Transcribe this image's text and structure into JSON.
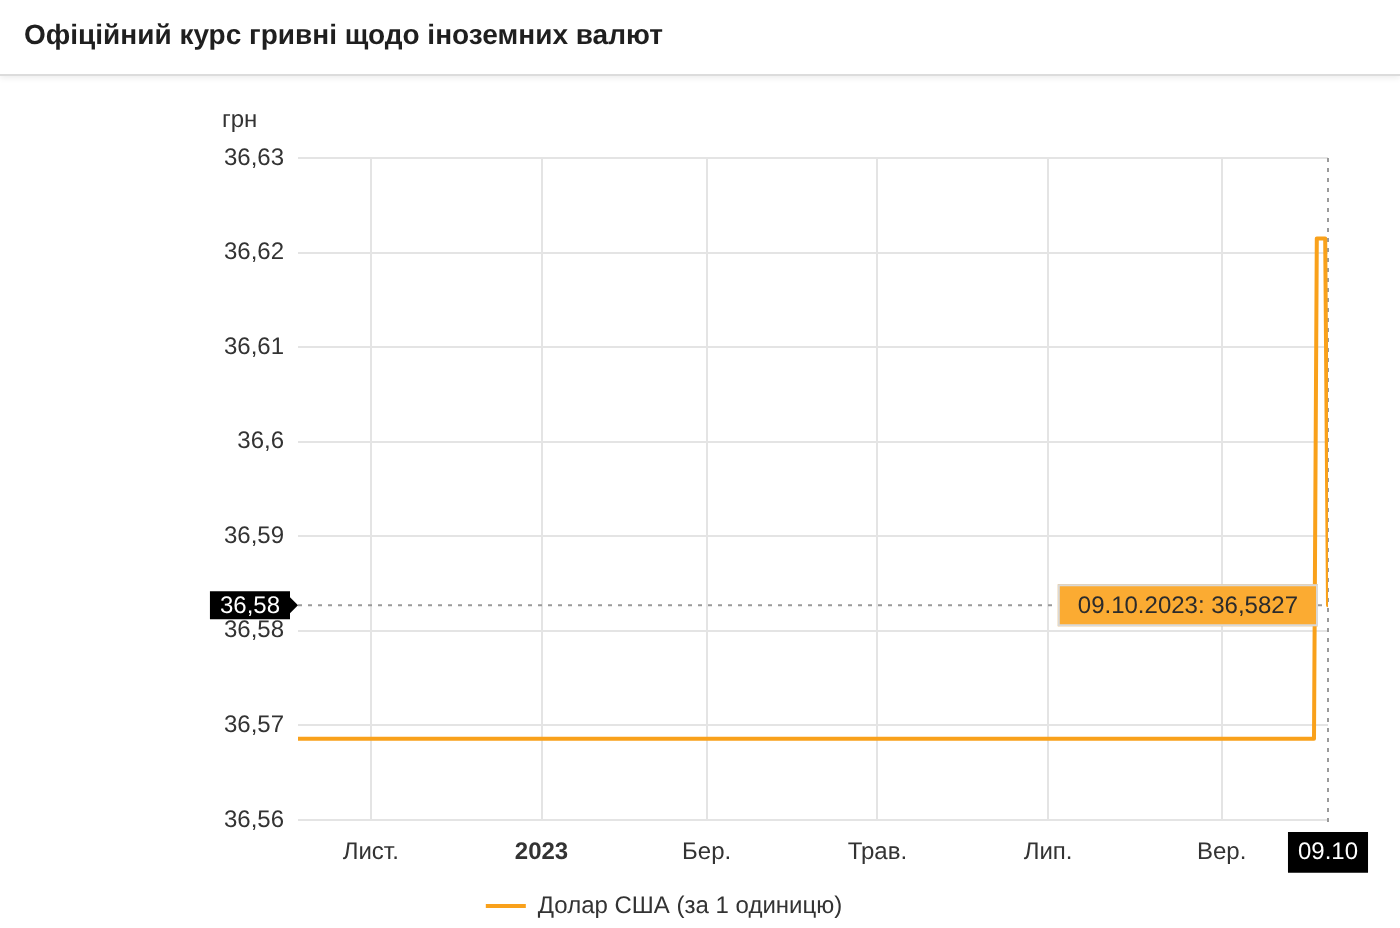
{
  "chart_data": {
    "type": "line",
    "title": "Офіційний курс гривні щодо іноземних валют",
    "ylabel": "грн",
    "x": [
      "2022-10-06",
      "2023-10-04",
      "2023-10-05",
      "2023-10-08",
      "2023-10-09"
    ],
    "series": [
      {
        "name": "Долар США (за 1 одиницю)",
        "color": "#f9a11b",
        "values": [
          36.5686,
          36.5686,
          36.6215,
          36.6215,
          36.5827
        ]
      }
    ],
    "xlim": [
      "2022-10-06",
      "2023-10-09"
    ],
    "xticks": [
      {
        "value": "2022-11-01",
        "label": "Лист."
      },
      {
        "value": "2023-01-01",
        "label": "2023"
      },
      {
        "value": "2023-03-01",
        "label": "Бер."
      },
      {
        "value": "2023-05-01",
        "label": "Трав."
      },
      {
        "value": "2023-07-01",
        "label": "Лип."
      },
      {
        "value": "2023-09-01",
        "label": "Вер."
      },
      {
        "value": "2023-10-09",
        "label": "09.10"
      }
    ],
    "ylim": [
      36.56,
      36.63
    ],
    "yticks": [
      {
        "value": 36.56,
        "label": "36,56"
      },
      {
        "value": 36.57,
        "label": "36,57"
      },
      {
        "value": 36.58,
        "label": "36,58"
      },
      {
        "value": 36.59,
        "label": "36,59"
      },
      {
        "value": 36.6,
        "label": "36,6"
      },
      {
        "value": 36.61,
        "label": "36,61"
      },
      {
        "value": 36.62,
        "label": "36,62"
      },
      {
        "value": 36.63,
        "label": "36,63"
      }
    ],
    "grid": true,
    "legend": "bottom",
    "marker": "none",
    "line_style": "solid",
    "ref_lines": [
      {
        "axis": "y",
        "value": 36.5827,
        "label": "36,58",
        "color": "#9a9a9a",
        "line_style": "dotted"
      },
      {
        "axis": "x",
        "value": "2023-10-09",
        "color": "#9a9a9a",
        "line_style": "dotted"
      }
    ],
    "annotations": [
      {
        "text": "09.10.2023: 36,5827",
        "x": "2023-10-09",
        "y": 36.5827
      }
    ]
  }
}
